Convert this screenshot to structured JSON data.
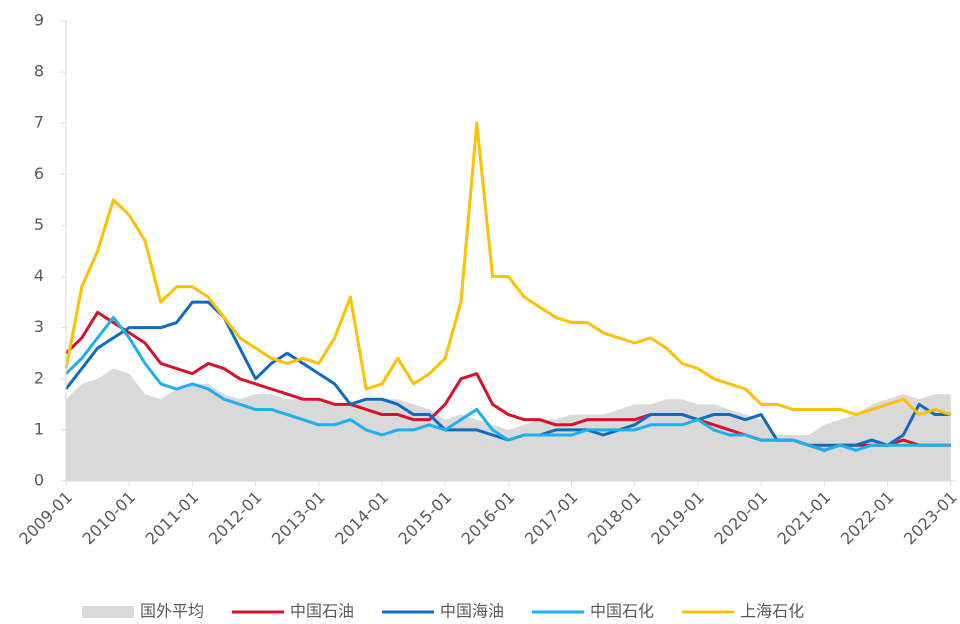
{
  "chart_data": {
    "type": "line",
    "x": [
      "2009-01",
      "2009-04",
      "2009-07",
      "2009-10",
      "2010-01",
      "2010-04",
      "2010-07",
      "2010-10",
      "2011-01",
      "2011-04",
      "2011-07",
      "2011-10",
      "2012-01",
      "2012-04",
      "2012-07",
      "2012-10",
      "2013-01",
      "2013-04",
      "2013-07",
      "2013-10",
      "2014-01",
      "2014-04",
      "2014-07",
      "2014-10",
      "2015-01",
      "2015-04",
      "2015-07",
      "2015-10",
      "2016-01",
      "2016-04",
      "2016-07",
      "2016-10",
      "2017-01",
      "2017-04",
      "2017-07",
      "2017-10",
      "2018-01",
      "2018-04",
      "2018-07",
      "2018-10",
      "2019-01",
      "2019-04",
      "2019-07",
      "2019-10",
      "2020-01",
      "2020-04",
      "2020-07",
      "2020-10",
      "2021-01",
      "2021-04",
      "2021-07",
      "2021-10",
      "2022-01",
      "2022-04",
      "2022-07",
      "2022-10",
      "2023-01"
    ],
    "series": [
      {
        "name": "国外平均",
        "color": "#d9d9d9",
        "style": "area",
        "values": [
          1.6,
          1.9,
          2.0,
          2.2,
          2.1,
          1.7,
          1.6,
          1.8,
          1.9,
          1.9,
          1.7,
          1.6,
          1.7,
          1.7,
          1.6,
          1.6,
          1.6,
          1.5,
          1.5,
          1.6,
          1.6,
          1.6,
          1.5,
          1.4,
          1.2,
          1.3,
          1.2,
          1.1,
          1.0,
          1.1,
          1.2,
          1.2,
          1.3,
          1.3,
          1.3,
          1.4,
          1.5,
          1.5,
          1.6,
          1.6,
          1.5,
          1.5,
          1.4,
          1.3,
          1.2,
          0.9,
          0.9,
          0.9,
          1.1,
          1.2,
          1.3,
          1.5,
          1.6,
          1.7,
          1.6,
          1.7,
          1.7
        ]
      },
      {
        "name": "中国石油",
        "color": "#d7102c",
        "style": "line",
        "values": [
          2.5,
          2.8,
          3.3,
          3.1,
          2.9,
          2.7,
          2.3,
          2.2,
          2.1,
          2.3,
          2.2,
          2.0,
          1.9,
          1.8,
          1.7,
          1.6,
          1.6,
          1.5,
          1.5,
          1.4,
          1.3,
          1.3,
          1.2,
          1.2,
          1.5,
          2.0,
          2.1,
          1.5,
          1.3,
          1.2,
          1.2,
          1.1,
          1.1,
          1.2,
          1.2,
          1.2,
          1.2,
          1.3,
          1.3,
          1.3,
          1.2,
          1.1,
          1.0,
          0.9,
          0.8,
          0.8,
          0.8,
          0.7,
          0.6,
          0.7,
          0.7,
          0.7,
          0.7,
          0.8,
          0.7,
          0.7,
          0.7
        ]
      },
      {
        "name": "中国海油",
        "color": "#0f6cbd",
        "style": "line",
        "values": [
          1.8,
          2.2,
          2.6,
          2.8,
          3.0,
          3.0,
          3.0,
          3.1,
          3.5,
          3.5,
          3.2,
          2.6,
          2.0,
          2.3,
          2.5,
          2.3,
          2.1,
          1.9,
          1.5,
          1.6,
          1.6,
          1.5,
          1.3,
          1.3,
          1.0,
          1.0,
          1.0,
          0.9,
          0.8,
          0.9,
          0.9,
          1.0,
          1.0,
          1.0,
          0.9,
          1.0,
          1.1,
          1.3,
          1.3,
          1.3,
          1.2,
          1.3,
          1.3,
          1.2,
          1.3,
          0.8,
          0.8,
          0.7,
          0.7,
          0.7,
          0.7,
          0.8,
          0.7,
          0.9,
          1.5,
          1.3,
          1.3
        ]
      },
      {
        "name": "中国石化",
        "color": "#1cb0ec",
        "style": "line",
        "values": [
          2.1,
          2.4,
          2.8,
          3.2,
          2.8,
          2.3,
          1.9,
          1.8,
          1.9,
          1.8,
          1.6,
          1.5,
          1.4,
          1.4,
          1.3,
          1.2,
          1.1,
          1.1,
          1.2,
          1.0,
          0.9,
          1.0,
          1.0,
          1.1,
          1.0,
          1.2,
          1.4,
          1.0,
          0.8,
          0.9,
          0.9,
          0.9,
          0.9,
          1.0,
          1.0,
          1.0,
          1.0,
          1.1,
          1.1,
          1.1,
          1.2,
          1.0,
          0.9,
          0.9,
          0.8,
          0.8,
          0.8,
          0.7,
          0.6,
          0.7,
          0.6,
          0.7,
          0.7,
          0.7,
          0.7,
          0.7,
          0.7
        ]
      },
      {
        "name": "上海石化",
        "color": "#ffc000",
        "style": "line",
        "values": [
          2.2,
          3.8,
          4.5,
          5.5,
          5.2,
          4.7,
          3.5,
          3.8,
          3.8,
          3.6,
          3.2,
          2.8,
          2.6,
          2.4,
          2.3,
          2.4,
          2.3,
          2.8,
          3.6,
          1.8,
          1.9,
          2.4,
          1.9,
          2.1,
          2.4,
          3.5,
          7.0,
          4.0,
          4.0,
          3.6,
          3.4,
          3.2,
          3.1,
          3.1,
          2.9,
          2.8,
          2.7,
          2.8,
          2.6,
          2.3,
          2.2,
          2.0,
          1.9,
          1.8,
          1.5,
          1.5,
          1.4,
          1.4,
          1.4,
          1.4,
          1.3,
          1.4,
          1.5,
          1.6,
          1.3,
          1.4,
          1.3
        ]
      }
    ],
    "xlim": [
      "2009-01",
      "2023-02"
    ],
    "xticks": [
      "2009-01",
      "2010-01",
      "2011-01",
      "2012-01",
      "2013-01",
      "2014-01",
      "2015-01",
      "2016-01",
      "2017-01",
      "2018-01",
      "2019-01",
      "2020-01",
      "2021-01",
      "2022-01",
      "2023-01"
    ],
    "ylim": [
      0,
      9
    ],
    "yticks": [
      0,
      1,
      2,
      3,
      4,
      5,
      6,
      7,
      8,
      9
    ],
    "legend": "bottom"
  }
}
